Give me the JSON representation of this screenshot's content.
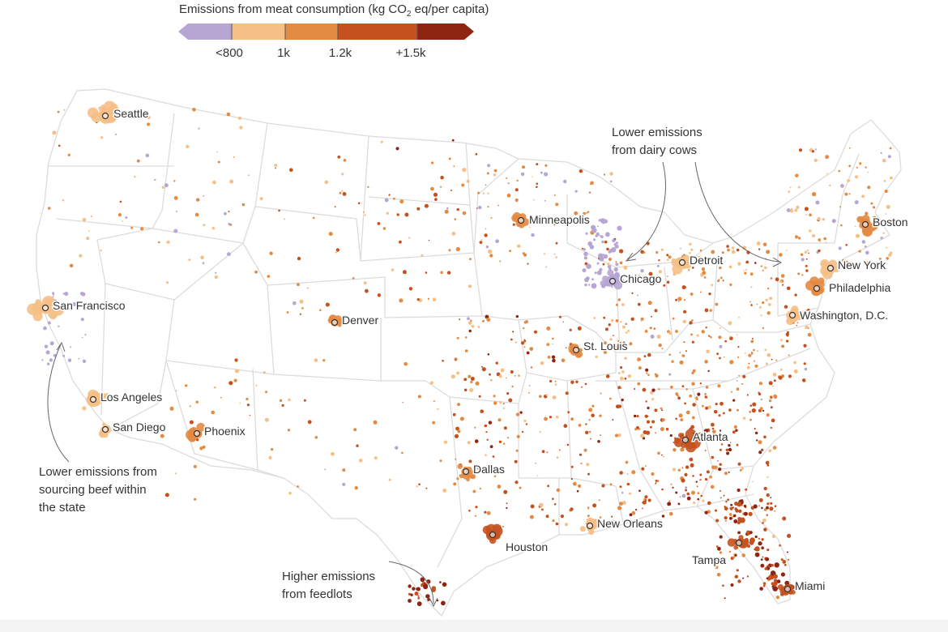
{
  "legend": {
    "title_main": "Emissions from meat consumption (kg CO",
    "title_sub": "2",
    "title_end": " eq/per capita)",
    "bins": [
      {
        "color": "#b7a5d4"
      },
      {
        "color": "#f5bf86"
      },
      {
        "color": "#e38a43"
      },
      {
        "color": "#c4521f"
      },
      {
        "color": "#8e2513"
      }
    ],
    "tick_labels": [
      "<800",
      "1k",
      "1.2k",
      "+1.5k"
    ]
  },
  "colors": {
    "low": "#b7a5d4",
    "light": "#f5bf86",
    "mid": "#e38a43",
    "high": "#c4521f",
    "vhigh": "#8e2513",
    "border": "#d9d9d9"
  },
  "cities": [
    {
      "name": "Seattle",
      "tier": "light"
    },
    {
      "name": "San Francisco",
      "tier": "light"
    },
    {
      "name": "Los Angeles",
      "tier": "light"
    },
    {
      "name": "San Diego",
      "tier": "light"
    },
    {
      "name": "Phoenix",
      "tier": "mid"
    },
    {
      "name": "Denver",
      "tier": "mid"
    },
    {
      "name": "Minneapolis",
      "tier": "mid"
    },
    {
      "name": "Chicago",
      "tier": "low"
    },
    {
      "name": "Detroit",
      "tier": "light"
    },
    {
      "name": "St. Louis",
      "tier": "mid"
    },
    {
      "name": "Dallas",
      "tier": "mid"
    },
    {
      "name": "Houston",
      "tier": "high"
    },
    {
      "name": "New Orleans",
      "tier": "light"
    },
    {
      "name": "Atlanta",
      "tier": "high"
    },
    {
      "name": "Tampa",
      "tier": "high"
    },
    {
      "name": "Miami",
      "tier": "high"
    },
    {
      "name": "Washington, D.C.",
      "tier": "light"
    },
    {
      "name": "Philadelphia",
      "tier": "mid"
    },
    {
      "name": "New York",
      "tier": "light"
    },
    {
      "name": "Boston",
      "tier": "mid"
    }
  ],
  "annotations": {
    "dairy": [
      "Lower emissions",
      "from dairy cows"
    ],
    "california": [
      "Lower emissions from",
      "sourcing beef within",
      "the state"
    ],
    "feedlots": [
      "Higher emissions",
      "from feedlots"
    ]
  }
}
